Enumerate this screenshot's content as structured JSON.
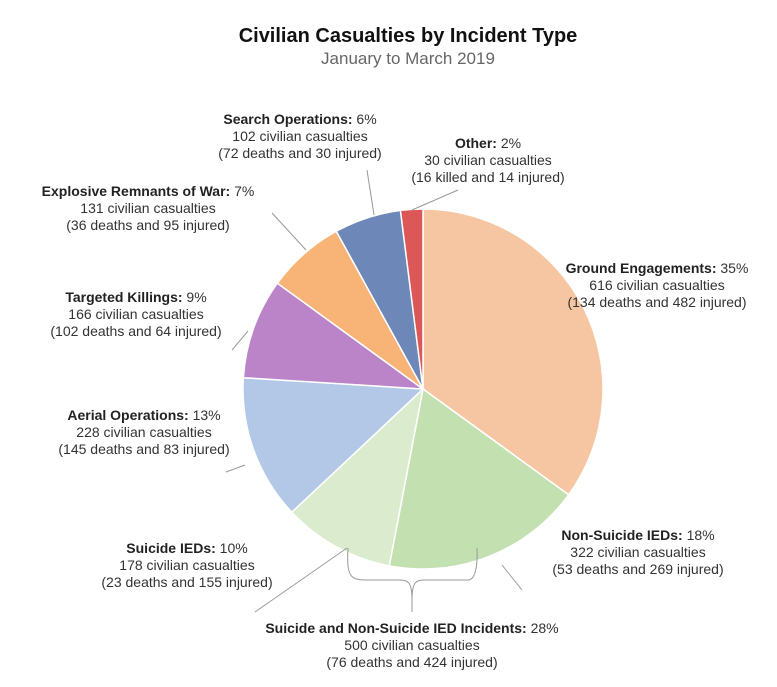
{
  "chart_data": {
    "type": "pie",
    "title": "Civilian Casualties by Incident Type",
    "subtitle": "January to March 2019",
    "series": [
      {
        "name": "Ground Engagements",
        "value": 35,
        "pct_label": "35%",
        "line2": "616 civilian casualties",
        "line3": "(134 deaths and 482 injured)",
        "color": "#f6c6a3"
      },
      {
        "name": "Non-Suicide IEDs",
        "value": 18,
        "pct_label": "18%",
        "line2": "322 civilian casualties",
        "line3": "(53 deaths and 269 injured)",
        "color": "#c3e0b0"
      },
      {
        "name": "Suicide IEDs",
        "value": 10,
        "pct_label": "10%",
        "line2": "178 civilian casualties",
        "line3": "(23 deaths and 155 injured)",
        "color": "#daeccd"
      },
      {
        "name": "Aerial Operations",
        "value": 13,
        "pct_label": "13%",
        "line2": "228 civilian casualties",
        "line3": "(145 deaths and 83 injured)",
        "color": "#b3c7e6"
      },
      {
        "name": "Targeted Killings",
        "value": 9,
        "pct_label": "9%",
        "line2": "166 civilian casualties",
        "line3": "(102 deaths and 64 injured)",
        "color": "#bc84c8"
      },
      {
        "name": "Explosive Remnants of War",
        "value": 7,
        "pct_label": "7%",
        "line2": "131 civilian casualties",
        "line3": "(36 deaths and 95 injured)",
        "color": "#f8b377"
      },
      {
        "name": "Search Operations",
        "value": 6,
        "pct_label": "6%",
        "line2": "102 civilian casualties",
        "line3": "(72 deaths and 30 injured)",
        "color": "#6d87b8"
      },
      {
        "name": "Other",
        "value": 2,
        "pct_label": "2%",
        "line2": "30 civilian casualties",
        "line3": "(16 killed and 14 injured)",
        "color": "#dc5858"
      }
    ],
    "group": {
      "name": "Suicide and Non-Suicide IED Incidents",
      "pct_label": "28%",
      "line2": "500 civilian casualties",
      "line3": "(76 deaths and 424 injured)"
    }
  }
}
